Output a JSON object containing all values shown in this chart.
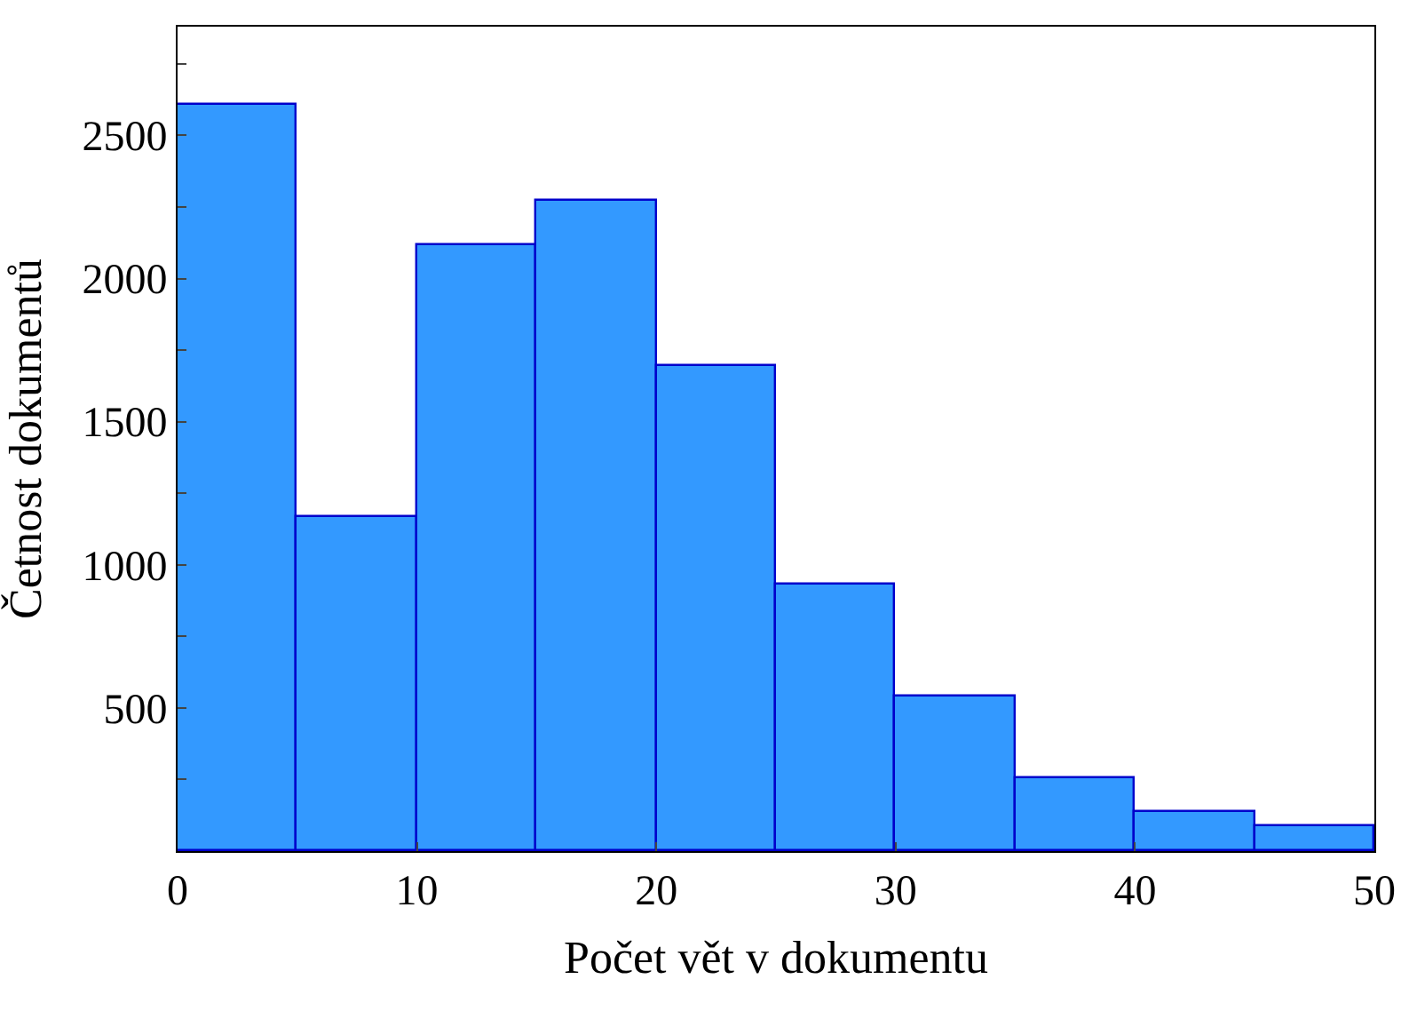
{
  "chart_data": {
    "type": "histogram",
    "xlabel": "Počet vět v dokumentu",
    "ylabel": "Četnost dokumentů",
    "bins": [
      0,
      5,
      10,
      15,
      20,
      25,
      30,
      35,
      40,
      45,
      50
    ],
    "values": [
      2610,
      1165,
      2115,
      2270,
      1695,
      930,
      540,
      255,
      135,
      85
    ],
    "color": "#3399ff",
    "xlim": [
      0,
      50
    ],
    "xticks": [
      0,
      10,
      20,
      30,
      40,
      50
    ],
    "ylim": [
      0,
      2880
    ],
    "yticks": [
      {
        "value": 250,
        "label": null
      },
      500,
      {
        "value": 750,
        "label": null
      },
      1000,
      {
        "value": 1250,
        "label": null
      },
      1500,
      {
        "value": 1750,
        "label": null
      },
      2000,
      {
        "value": 2250,
        "label": null
      },
      2500,
      {
        "value": 2750,
        "label": null
      }
    ]
  }
}
